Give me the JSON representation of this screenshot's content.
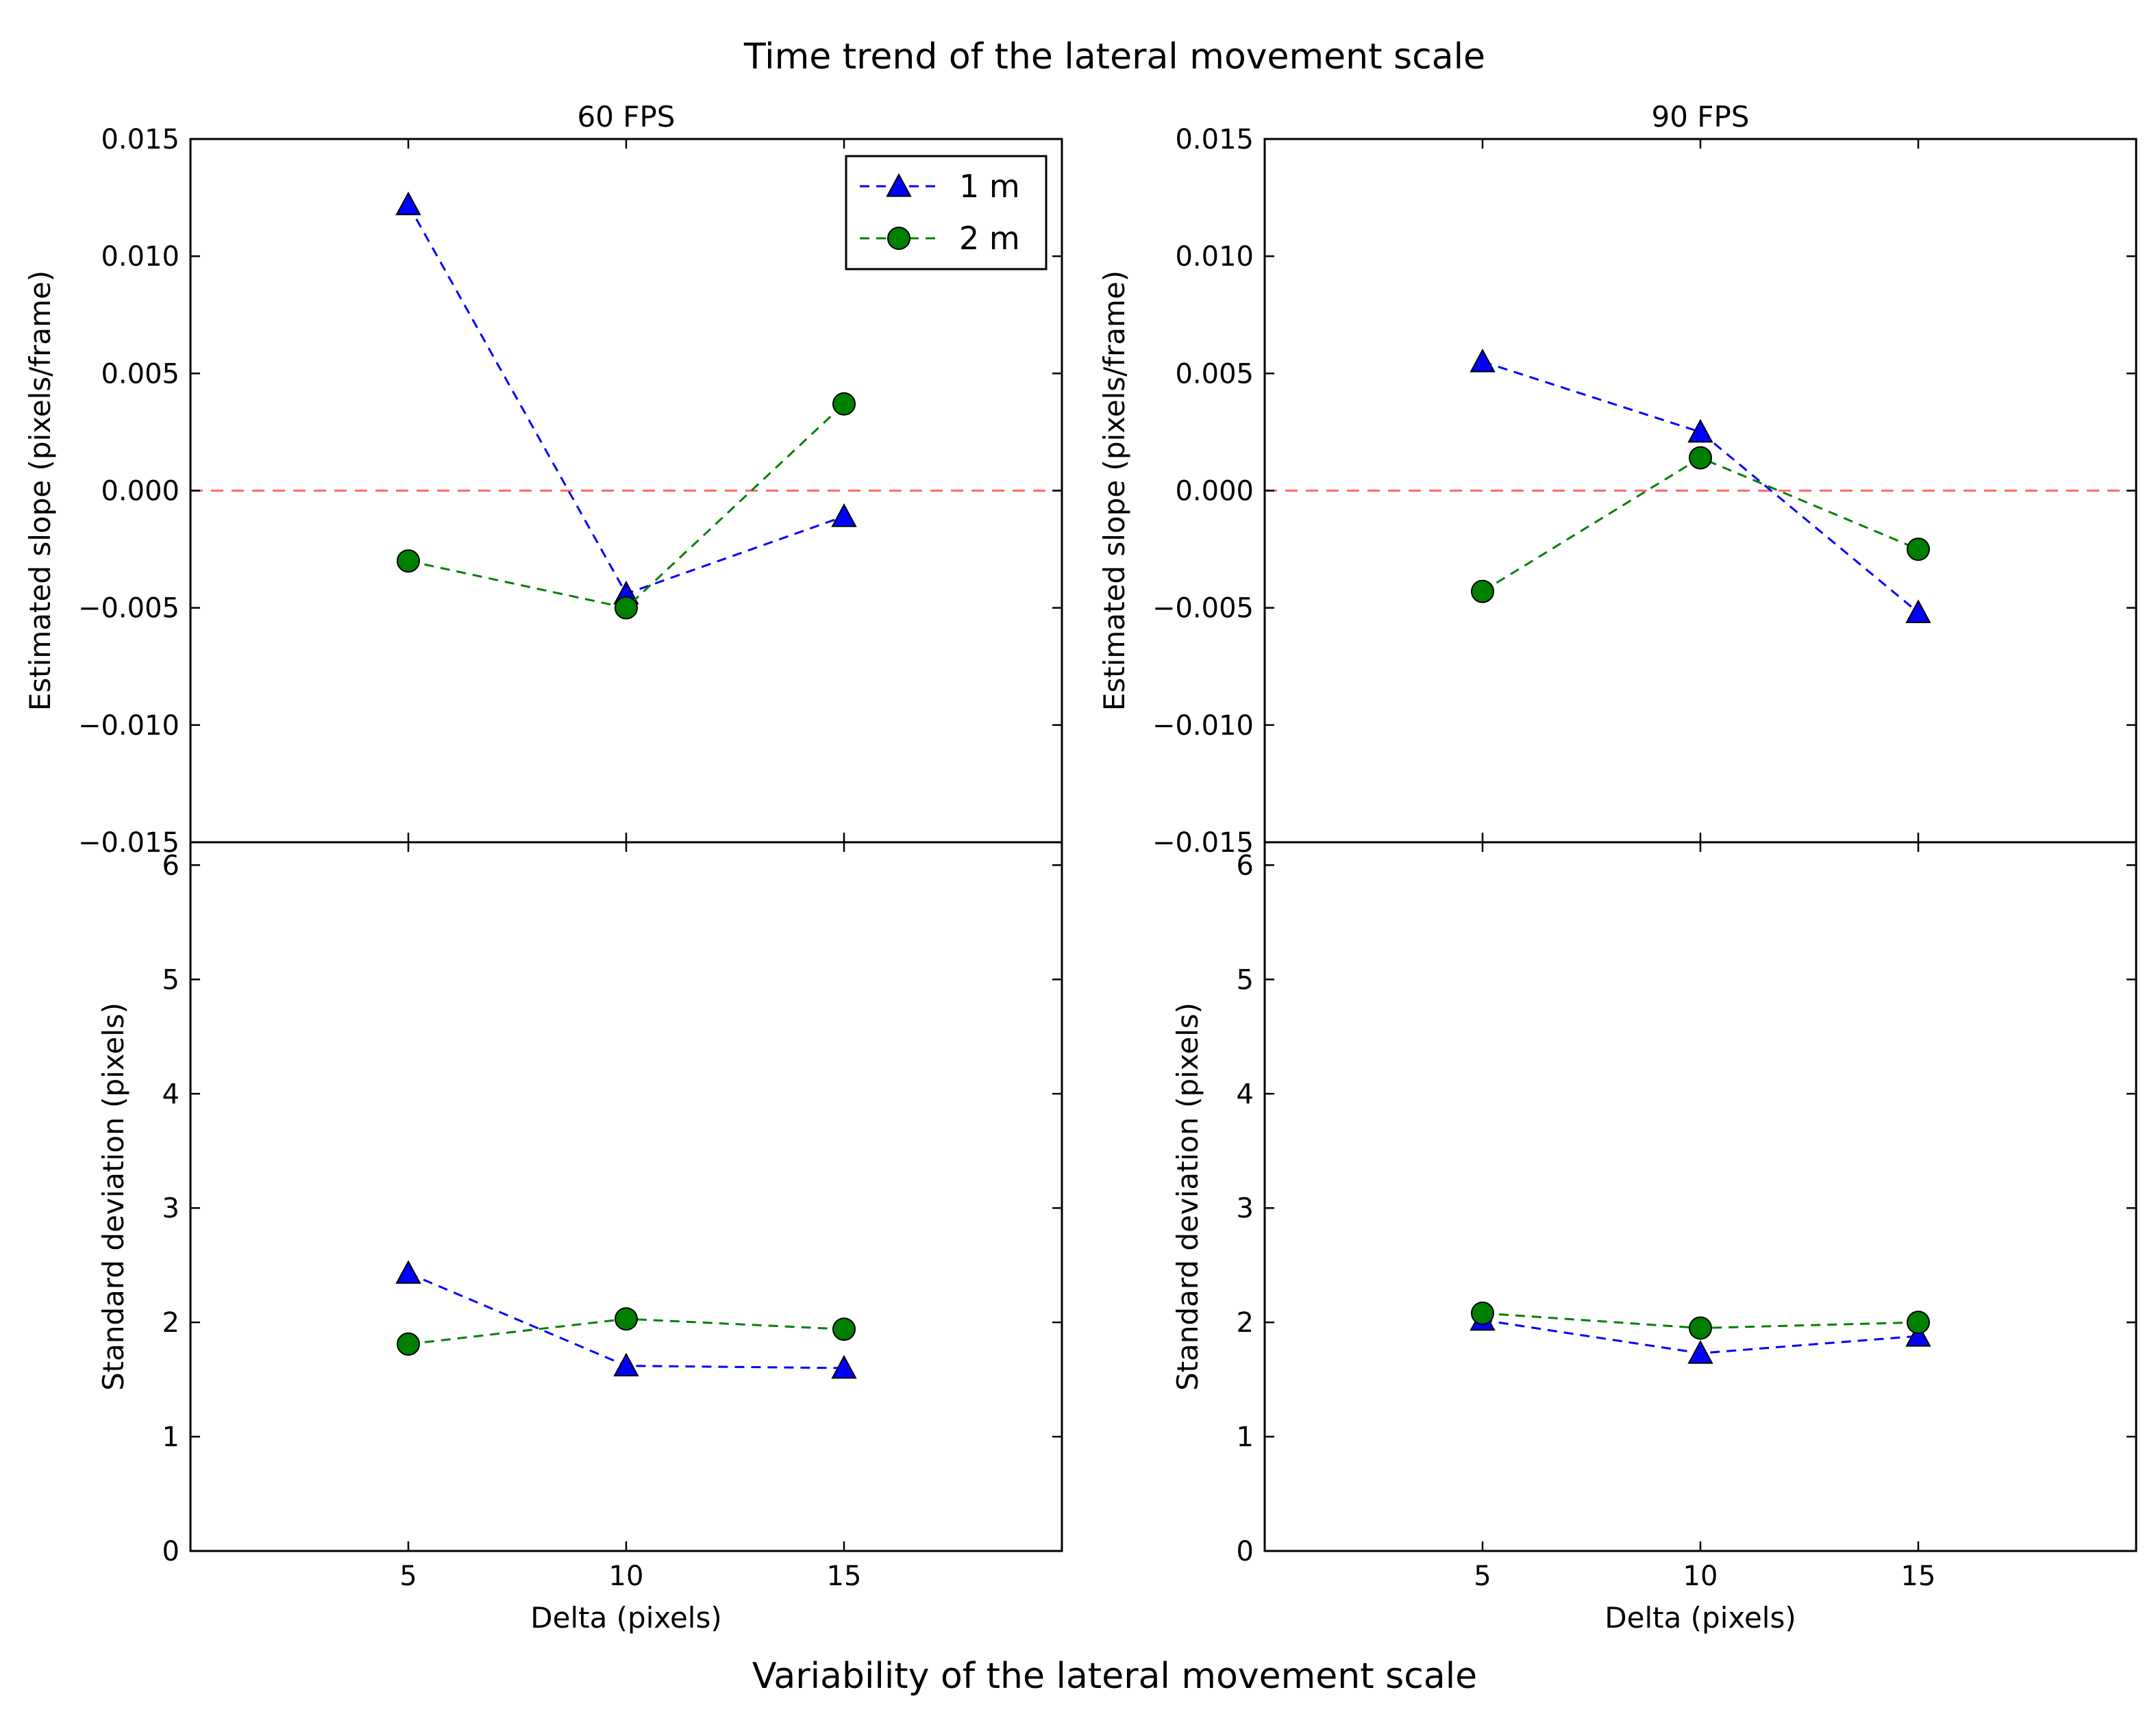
{
  "figure": {
    "top_title": "Time trend of the lateral movement scale",
    "bottom_title": "Variability of the lateral movement scale"
  },
  "legend": [
    {
      "label": "1 m",
      "color": "#0000ff",
      "marker": "triangle-up"
    },
    {
      "label": "2 m",
      "color": "#008000",
      "marker": "circle"
    }
  ],
  "reference_line": {
    "y": 0.0,
    "color": "#ff6b6b",
    "style": "dashed"
  },
  "chart_data": [
    {
      "type": "line",
      "panel": "top-left",
      "title": "60 FPS",
      "xlabel": "",
      "ylabel": "Estimated slope (pixels/frame)",
      "xlim": [
        0,
        20
      ],
      "ylim": [
        -0.015,
        0.015
      ],
      "x": [
        5,
        10,
        15
      ],
      "xticks": [
        5,
        10,
        15
      ],
      "xticklabels": [
        "5",
        "10",
        "15"
      ],
      "yticks": [
        0.015,
        0.01,
        0.005,
        0.0,
        -0.005,
        -0.01,
        -0.015
      ],
      "yticklabels": [
        "0.015",
        "0.010",
        "0.005",
        "0.000",
        "−0.005",
        "−0.010",
        "−0.015"
      ],
      "show_xticklabels": false,
      "reference_y": 0.0,
      "legend": true,
      "series": [
        {
          "name": "1 m",
          "values": [
            0.0122,
            -0.0044,
            -0.0011
          ]
        },
        {
          "name": "2 m",
          "values": [
            -0.003,
            -0.005,
            0.0037
          ]
        }
      ]
    },
    {
      "type": "line",
      "panel": "top-right",
      "title": "90 FPS",
      "xlabel": "",
      "ylabel": "Estimated slope (pixels/frame)",
      "xlim": [
        0,
        20
      ],
      "ylim": [
        -0.015,
        0.015
      ],
      "x": [
        5,
        10,
        15
      ],
      "xticks": [
        5,
        10,
        15
      ],
      "xticklabels": [
        "5",
        "10",
        "15"
      ],
      "yticks": [
        0.015,
        0.01,
        0.005,
        0.0,
        -0.005,
        -0.01,
        -0.015
      ],
      "yticklabels": [
        "0.015",
        "0.010",
        "0.005",
        "0.000",
        "−0.005",
        "−0.010",
        "−0.015"
      ],
      "show_xticklabels": false,
      "reference_y": 0.0,
      "legend": false,
      "series": [
        {
          "name": "1 m",
          "values": [
            0.0055,
            0.0025,
            -0.0052
          ]
        },
        {
          "name": "2 m",
          "values": [
            -0.0043,
            0.0014,
            -0.0025
          ]
        }
      ]
    },
    {
      "type": "line",
      "panel": "bottom-left",
      "title": "",
      "xlabel": "Delta (pixels)",
      "ylabel": "Standard deviation (pixels)",
      "xlim": [
        0,
        20
      ],
      "ylim": [
        0,
        6.2
      ],
      "x": [
        5,
        10,
        15
      ],
      "xticks": [
        5,
        10,
        15
      ],
      "xticklabels": [
        "5",
        "10",
        "15"
      ],
      "yticks": [
        0,
        1,
        2,
        3,
        4,
        5,
        6
      ],
      "yticklabels": [
        "0",
        "1",
        "2",
        "3",
        "4",
        "5",
        "6"
      ],
      "show_xticklabels": true,
      "legend": false,
      "series": [
        {
          "name": "1 m",
          "values": [
            2.43,
            1.62,
            1.6
          ]
        },
        {
          "name": "2 m",
          "values": [
            1.81,
            2.03,
            1.94
          ]
        }
      ]
    },
    {
      "type": "line",
      "panel": "bottom-right",
      "title": "",
      "xlabel": "Delta (pixels)",
      "ylabel": "Standard deviation (pixels)",
      "xlim": [
        0,
        20
      ],
      "ylim": [
        0,
        6.2
      ],
      "x": [
        5,
        10,
        15
      ],
      "xticks": [
        5,
        10,
        15
      ],
      "xticklabels": [
        "5",
        "10",
        "15"
      ],
      "yticks": [
        0,
        1,
        2,
        3,
        4,
        5,
        6
      ],
      "yticklabels": [
        "0",
        "1",
        "2",
        "3",
        "4",
        "5",
        "6"
      ],
      "show_xticklabels": true,
      "legend": false,
      "series": [
        {
          "name": "1 m",
          "values": [
            2.02,
            1.73,
            1.88
          ]
        },
        {
          "name": "2 m",
          "values": [
            2.08,
            1.95,
            2.0
          ]
        }
      ]
    }
  ]
}
